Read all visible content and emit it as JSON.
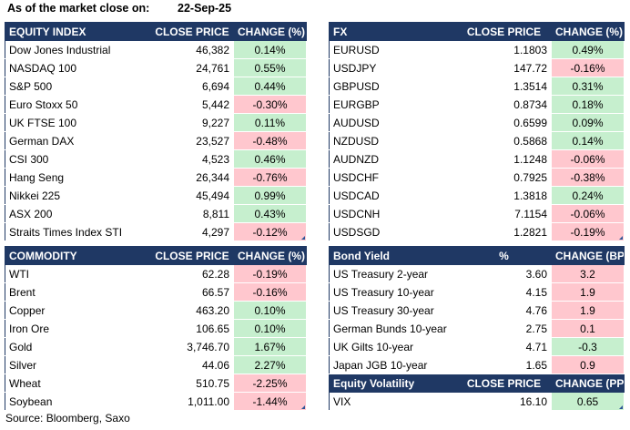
{
  "header": {
    "label": "As of the market close on:",
    "date": "22-Sep-25"
  },
  "source": "Source: Bloomberg, Saxo",
  "colors": {
    "header_bg": "#1f3864",
    "positive_bg": "#c6efce",
    "negative_bg": "#ffc7ce"
  },
  "equity": {
    "columns": [
      "EQUITY INDEX",
      "CLOSE PRICE",
      "CHANGE (%)"
    ],
    "rows": [
      {
        "name": "Dow Jones Industrial",
        "price": "46,382",
        "change": "0.14%",
        "dir": "pos"
      },
      {
        "name": "NASDAQ 100",
        "price": "24,761",
        "change": "0.55%",
        "dir": "pos"
      },
      {
        "name": "S&P 500",
        "price": "6,694",
        "change": "0.44%",
        "dir": "pos"
      },
      {
        "name": "Euro Stoxx 50",
        "price": "5,442",
        "change": "-0.30%",
        "dir": "neg"
      },
      {
        "name": "UK FTSE 100",
        "price": "9,227",
        "change": "0.11%",
        "dir": "pos"
      },
      {
        "name": "German DAX",
        "price": "23,527",
        "change": "-0.48%",
        "dir": "neg"
      },
      {
        "name": "CSI 300",
        "price": "4,523",
        "change": "0.46%",
        "dir": "pos"
      },
      {
        "name": "Hang Seng",
        "price": "26,344",
        "change": "-0.76%",
        "dir": "neg"
      },
      {
        "name": "Nikkei 225",
        "price": "45,494",
        "change": "0.99%",
        "dir": "pos"
      },
      {
        "name": "ASX 200",
        "price": "8,811",
        "change": "0.43%",
        "dir": "pos"
      },
      {
        "name": "Straits Times Index STI",
        "price": "4,297",
        "change": "-0.12%",
        "dir": "neg"
      }
    ]
  },
  "fx": {
    "columns": [
      "FX",
      "CLOSE PRICE",
      "CHANGE (%)"
    ],
    "rows": [
      {
        "name": "EURUSD",
        "price": "1.1803",
        "change": "0.49%",
        "dir": "pos"
      },
      {
        "name": "USDJPY",
        "price": "147.72",
        "change": "-0.16%",
        "dir": "neg"
      },
      {
        "name": "GBPUSD",
        "price": "1.3514",
        "change": "0.31%",
        "dir": "pos"
      },
      {
        "name": "EURGBP",
        "price": "0.8734",
        "change": "0.18%",
        "dir": "pos"
      },
      {
        "name": "AUDUSD",
        "price": "0.6599",
        "change": "0.09%",
        "dir": "pos"
      },
      {
        "name": "NZDUSD",
        "price": "0.5868",
        "change": "0.14%",
        "dir": "pos"
      },
      {
        "name": "AUDNZD",
        "price": "1.1248",
        "change": "-0.06%",
        "dir": "neg"
      },
      {
        "name": "USDCHF",
        "price": "0.7925",
        "change": "-0.38%",
        "dir": "neg"
      },
      {
        "name": "USDCAD",
        "price": "1.3818",
        "change": "0.24%",
        "dir": "pos"
      },
      {
        "name": "USDCNH",
        "price": "7.1154",
        "change": "-0.06%",
        "dir": "neg"
      },
      {
        "name": "USDSGD",
        "price": "1.2821",
        "change": "-0.19%",
        "dir": "neg"
      }
    ]
  },
  "commodity": {
    "columns": [
      "COMMODITY",
      "CLOSE PRICE",
      "CHANGE (%)"
    ],
    "rows": [
      {
        "name": "WTI",
        "price": "62.28",
        "change": "-0.19%",
        "dir": "neg"
      },
      {
        "name": "Brent",
        "price": "66.57",
        "change": "-0.16%",
        "dir": "neg"
      },
      {
        "name": "Copper",
        "price": "463.20",
        "change": "0.10%",
        "dir": "pos"
      },
      {
        "name": "Iron Ore",
        "price": "106.65",
        "change": "0.10%",
        "dir": "pos"
      },
      {
        "name": "Gold",
        "price": "3,746.70",
        "change": "1.67%",
        "dir": "pos"
      },
      {
        "name": "Silver",
        "price": "44.06",
        "change": "2.27%",
        "dir": "pos"
      },
      {
        "name": "Wheat",
        "price": "510.75",
        "change": "-2.25%",
        "dir": "neg"
      },
      {
        "name": "Soybean",
        "price": "1,011.00",
        "change": "-1.44%",
        "dir": "neg"
      }
    ]
  },
  "bonds": {
    "columns": [
      "Bond Yield",
      "%",
      "CHANGE (BPS)"
    ],
    "rows": [
      {
        "name": "US Treasury 2-year",
        "price": "3.60",
        "change": "3.2",
        "dir": "neg"
      },
      {
        "name": "US Treasury 10-year",
        "price": "4.15",
        "change": "1.9",
        "dir": "neg"
      },
      {
        "name": "US Treasury 30-year",
        "price": "4.76",
        "change": "1.9",
        "dir": "neg"
      },
      {
        "name": "German Bunds 10-year",
        "price": "2.75",
        "change": "0.1",
        "dir": "neg"
      },
      {
        "name": "UK Gilts 10-year",
        "price": "4.71",
        "change": "-0.3",
        "dir": "pos"
      },
      {
        "name": "Japan JGB 10-year",
        "price": "1.65",
        "change": "0.9",
        "dir": "neg"
      }
    ]
  },
  "volatility": {
    "columns": [
      "Equity Volatility",
      "CLOSE PRICE",
      "CHANGE (PP)"
    ],
    "rows": [
      {
        "name": "VIX",
        "price": "16.10",
        "change": "0.65",
        "dir": "pos"
      }
    ]
  }
}
